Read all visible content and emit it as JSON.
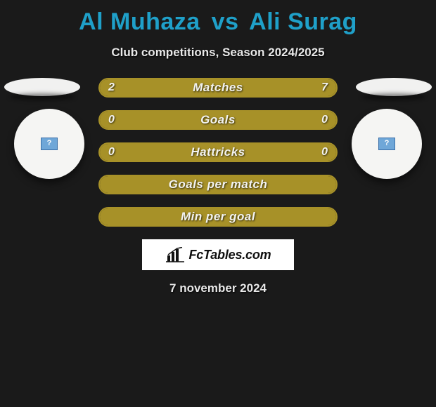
{
  "title": {
    "player1": "Al Muhaza",
    "vs": "vs",
    "player2": "Ali Surag",
    "color": "#1fa0c9"
  },
  "subtitle": "Club competitions, Season 2024/2025",
  "colors": {
    "accent": "#a79128",
    "bg": "#1a1a1a",
    "text": "#e8e8e8",
    "bar_text": "#f3f3f0"
  },
  "bars": [
    {
      "label": "Matches",
      "type": "split",
      "left_val": "2",
      "right_val": "7",
      "left_pct": 22,
      "right_pct": 78,
      "left_color": "#a79128",
      "right_color": "#a79128",
      "border_color": "#a79128"
    },
    {
      "label": "Goals",
      "type": "split",
      "left_val": "0",
      "right_val": "0",
      "left_pct": 50,
      "right_pct": 50,
      "left_color": "#a79128",
      "right_color": "#a79128",
      "border_color": "#a79128"
    },
    {
      "label": "Hattricks",
      "type": "split",
      "left_val": "0",
      "right_val": "0",
      "left_pct": 50,
      "right_pct": 50,
      "left_color": "#a79128",
      "right_color": "#a79128",
      "border_color": "#a79128"
    },
    {
      "label": "Goals per match",
      "type": "full",
      "full_color": "#a79128",
      "border_color": "#a79128"
    },
    {
      "label": "Min per goal",
      "type": "full",
      "full_color": "#a79128",
      "border_color": "#a79128"
    }
  ],
  "badges": {
    "left_icon": "?",
    "right_icon": "?"
  },
  "branding": "FcTables.com",
  "date": "7 november 2024"
}
